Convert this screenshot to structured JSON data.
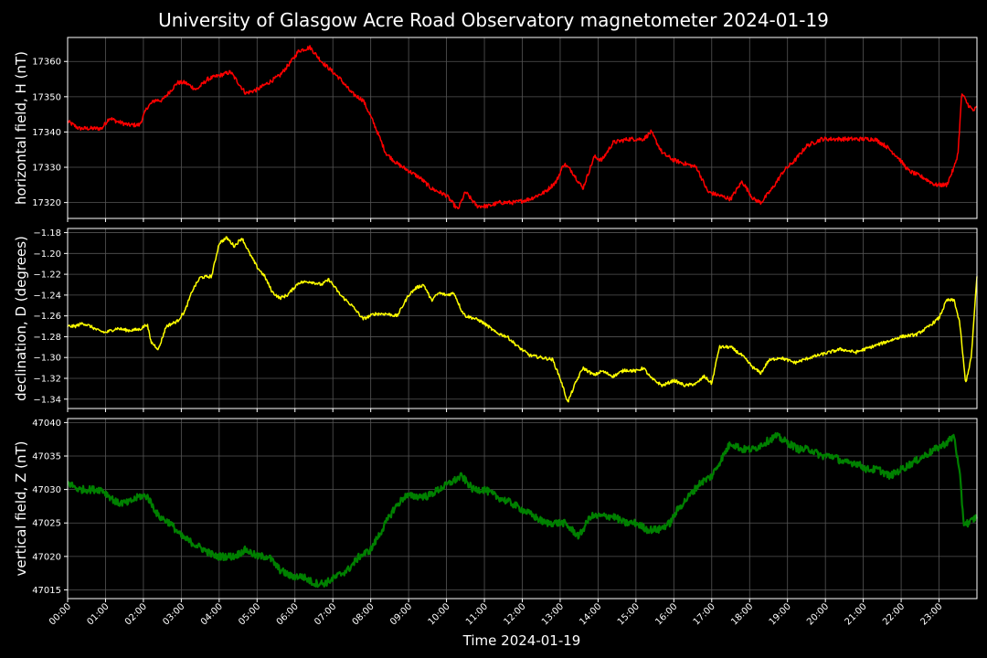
{
  "title": "University of Glasgow Acre Road Observatory magnetometer 2024-01-19",
  "xlabel": "Time 2024-01-19",
  "chart_data": {
    "type": "line",
    "x_ticks": [
      "00:00",
      "01:00",
      "02:00",
      "03:00",
      "04:00",
      "05:00",
      "06:00",
      "07:00",
      "08:00",
      "09:00",
      "10:00",
      "11:00",
      "12:00",
      "13:00",
      "14:00",
      "15:00",
      "16:00",
      "17:00",
      "18:00",
      "19:00",
      "20:00",
      "21:00",
      "22:00",
      "23:00"
    ],
    "xlim": [
      0,
      24
    ],
    "grid": true,
    "panels": [
      {
        "ylabel": "horizontal field, H (nT)",
        "color": "#ff0000",
        "ylim": [
          17315.5,
          17366.8
        ],
        "yticks": [
          17320,
          17330,
          17340,
          17350,
          17360
        ],
        "noise": 0.6,
        "x": [
          0,
          0.3,
          0.6,
          0.9,
          1.1,
          1.3,
          1.6,
          1.9,
          2.1,
          2.3,
          2.5,
          2.9,
          3.1,
          3.4,
          3.7,
          4.0,
          4.3,
          4.5,
          4.7,
          5.0,
          5.3,
          5.6,
          5.9,
          6.1,
          6.4,
          6.7,
          6.9,
          7.2,
          7.5,
          7.8,
          8.1,
          8.4,
          8.7,
          9.0,
          9.3,
          9.6,
          10.0,
          10.3,
          10.5,
          10.8,
          11.1,
          11.4,
          11.8,
          12.2,
          12.6,
          12.9,
          13.1,
          13.3,
          13.6,
          13.9,
          14.1,
          14.4,
          14.8,
          15.2,
          15.4,
          15.7,
          16.0,
          16.3,
          16.6,
          16.9,
          17.2,
          17.5,
          17.8,
          18.1,
          18.3,
          18.6,
          18.9,
          19.2,
          19.5,
          19.9,
          20.2,
          20.6,
          21.0,
          21.3,
          21.6,
          21.9,
          22.2,
          22.6,
          22.9,
          23.2,
          23.4,
          23.5,
          23.6,
          23.75,
          23.9,
          24.0
        ],
        "values": [
          17343,
          17341,
          17341,
          17341,
          17344,
          17343,
          17342,
          17342,
          17347,
          17349,
          17349,
          17354,
          17354,
          17352,
          17355,
          17356,
          17357,
          17354,
          17351,
          17352,
          17354,
          17356,
          17360,
          17363,
          17364,
          17360,
          17358,
          17355,
          17351,
          17349,
          17342,
          17334,
          17331,
          17329,
          17327,
          17324,
          17322,
          17318,
          17323,
          17319,
          17319,
          17320,
          17320,
          17321,
          17323,
          17326,
          17331,
          17329,
          17324,
          17333,
          17332,
          17337,
          17338,
          17338,
          17340,
          17334,
          17332,
          17331,
          17330,
          17323,
          17322,
          17321,
          17326,
          17321,
          17320,
          17324,
          17329,
          17332,
          17336,
          17338,
          17338,
          17338,
          17338,
          17338,
          17336,
          17333,
          17329,
          17327,
          17325,
          17325,
          17330,
          17334,
          17351,
          17348,
          17346,
          17347
        ]
      },
      {
        "ylabel": "declination, D (degrees)",
        "color": "#ffff00",
        "ylim": [
          -1.349,
          -1.176
        ],
        "yticks": [
          -1.34,
          -1.32,
          -1.3,
          -1.28,
          -1.26,
          -1.24,
          -1.22,
          -1.2,
          -1.18
        ],
        "noise": 0.0015,
        "x": [
          0,
          0.2,
          0.4,
          0.6,
          0.8,
          1.0,
          1.3,
          1.6,
          1.9,
          2.1,
          2.2,
          2.4,
          2.6,
          2.9,
          3.1,
          3.3,
          3.5,
          3.8,
          4.0,
          4.2,
          4.4,
          4.6,
          4.8,
          5.0,
          5.2,
          5.4,
          5.6,
          5.8,
          6.1,
          6.4,
          6.7,
          6.9,
          7.2,
          7.5,
          7.8,
          8.1,
          8.4,
          8.7,
          9.0,
          9.2,
          9.4,
          9.6,
          9.8,
          10.0,
          10.2,
          10.4,
          10.5,
          10.7,
          10.9,
          11.1,
          11.3,
          11.6,
          11.9,
          12.2,
          12.5,
          12.8,
          13.0,
          13.2,
          13.4,
          13.6,
          13.9,
          14.1,
          14.4,
          14.7,
          15.0,
          15.2,
          15.4,
          15.7,
          16.0,
          16.3,
          16.6,
          16.8,
          17.0,
          17.2,
          17.5,
          17.8,
          18.1,
          18.3,
          18.5,
          18.8,
          19.2,
          19.6,
          20.0,
          20.4,
          20.8,
          21.2,
          21.6,
          22.0,
          22.4,
          22.7,
          23.0,
          23.2,
          23.4,
          23.55,
          23.7,
          23.85,
          24.0
        ],
        "values": [
          -1.27,
          -1.27,
          -1.267,
          -1.27,
          -1.274,
          -1.276,
          -1.272,
          -1.274,
          -1.273,
          -1.268,
          -1.285,
          -1.292,
          -1.27,
          -1.265,
          -1.255,
          -1.235,
          -1.223,
          -1.222,
          -1.19,
          -1.185,
          -1.193,
          -1.185,
          -1.2,
          -1.213,
          -1.222,
          -1.237,
          -1.243,
          -1.24,
          -1.228,
          -1.227,
          -1.23,
          -1.225,
          -1.24,
          -1.25,
          -1.263,
          -1.258,
          -1.258,
          -1.26,
          -1.24,
          -1.233,
          -1.23,
          -1.245,
          -1.238,
          -1.24,
          -1.238,
          -1.255,
          -1.26,
          -1.262,
          -1.265,
          -1.27,
          -1.276,
          -1.28,
          -1.29,
          -1.298,
          -1.3,
          -1.302,
          -1.32,
          -1.343,
          -1.325,
          -1.31,
          -1.317,
          -1.313,
          -1.318,
          -1.312,
          -1.313,
          -1.31,
          -1.32,
          -1.327,
          -1.322,
          -1.327,
          -1.325,
          -1.318,
          -1.325,
          -1.29,
          -1.29,
          -1.298,
          -1.31,
          -1.315,
          -1.303,
          -1.3,
          -1.305,
          -1.3,
          -1.296,
          -1.292,
          -1.295,
          -1.29,
          -1.285,
          -1.28,
          -1.278,
          -1.271,
          -1.262,
          -1.245,
          -1.245,
          -1.268,
          -1.325,
          -1.3,
          -1.222
        ]
      },
      {
        "ylabel": "vertical field, Z (nT)",
        "color": "#008000",
        "ylim": [
          47013.7,
          47040.6
        ],
        "yticks": [
          47015,
          47020,
          47025,
          47030,
          47035,
          47040
        ],
        "noise": 0.55,
        "x": [
          0,
          0.3,
          0.6,
          0.9,
          1.1,
          1.3,
          1.6,
          1.9,
          2.1,
          2.4,
          2.7,
          3.0,
          3.3,
          3.6,
          3.9,
          4.2,
          4.4,
          4.7,
          5.0,
          5.3,
          5.6,
          5.9,
          6.2,
          6.5,
          6.8,
          7.1,
          7.4,
          7.7,
          8.0,
          8.3,
          8.6,
          8.9,
          9.2,
          9.5,
          9.8,
          10.1,
          10.4,
          10.7,
          11.0,
          11.3,
          11.7,
          12.0,
          12.3,
          12.6,
          12.9,
          13.1,
          13.3,
          13.5,
          13.8,
          14.1,
          14.4,
          14.7,
          15.0,
          15.3,
          15.6,
          15.9,
          16.1,
          16.4,
          16.7,
          17.0,
          17.2,
          17.5,
          17.8,
          18.1,
          18.4,
          18.7,
          19.0,
          19.3,
          19.6,
          19.9,
          20.2,
          20.5,
          20.8,
          21.1,
          21.4,
          21.7,
          22.0,
          22.3,
          22.6,
          22.9,
          23.2,
          23.4,
          23.55,
          23.65,
          23.8,
          24.0
        ],
        "values": [
          47031,
          47030,
          47030,
          47030,
          47029,
          47028,
          47028,
          47029,
          47029,
          47026,
          47025,
          47023,
          47022,
          47021,
          47020,
          47020,
          47020,
          47021,
          47020,
          47020,
          47018,
          47017,
          47017,
          47016,
          47016,
          47017,
          47018,
          47020,
          47021,
          47024,
          47027,
          47029,
          47029,
          47029,
          47030,
          47031,
          47032,
          47030,
          47030,
          47029,
          47028,
          47027,
          47026,
          47025,
          47025,
          47025,
          47024,
          47023,
          47026,
          47026,
          47026,
          47025,
          47025,
          47024,
          47024,
          47025,
          47027,
          47029,
          47031,
          47032,
          47034,
          47037,
          47036,
          47036,
          47037,
          47038,
          47037,
          47036,
          47036,
          47035,
          47035,
          47034,
          47034,
          47033,
          47033,
          47032,
          47033,
          47034,
          47035,
          47036,
          47037,
          47038,
          47032,
          47025,
          47025,
          47026
        ]
      }
    ]
  }
}
